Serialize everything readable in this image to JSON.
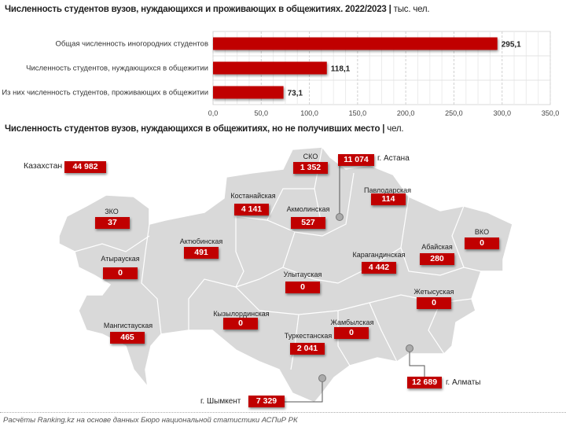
{
  "chart_data": [
    {
      "type": "bar",
      "orientation": "horizontal",
      "title": "Численность студентов вузов, нуждающихся и проживающих в общежитиях. 2022/2023",
      "unit": "тыс. чел.",
      "categories": [
        "Общая численность иногородних студентов",
        "Численность студентов, нуждающихся в общежитии",
        "Из них численность студентов, проживающих в общежитии"
      ],
      "values": [
        295.1,
        118.1,
        73.1
      ],
      "value_labels": [
        "295,1",
        "118,1",
        "73,1"
      ],
      "xlim": [
        0,
        350
      ],
      "ticks": [
        "0,0",
        "50,0",
        "100,0",
        "150,0",
        "200,0",
        "250,0",
        "300,0",
        "350,0"
      ],
      "grid": true,
      "color": "#c00000"
    },
    {
      "type": "map",
      "title": "Численность студентов вузов, нуждающихся в общежитиях, но не получивших место",
      "unit": "чел.",
      "total": {
        "label": "Казахстан",
        "value": "44 982"
      },
      "regions": [
        {
          "name": "СКО",
          "value": "1 352"
        },
        {
          "name": "Костанайская",
          "value": "4 141"
        },
        {
          "name": "Акмолинская",
          "value": "527"
        },
        {
          "name": "Павлодарская",
          "value": "114"
        },
        {
          "name": "ЗКО",
          "value": "37"
        },
        {
          "name": "Актюбинская",
          "value": "491"
        },
        {
          "name": "Атырауская",
          "value": "0"
        },
        {
          "name": "Улытауская",
          "value": "0"
        },
        {
          "name": "Карагандинская",
          "value": "4 442"
        },
        {
          "name": "Абайская",
          "value": "280"
        },
        {
          "name": "ВКО",
          "value": "0"
        },
        {
          "name": "Жетысуская",
          "value": "0"
        },
        {
          "name": "Кызылординская",
          "value": "0"
        },
        {
          "name": "Мангистауская",
          "value": "465"
        },
        {
          "name": "Туркестанская",
          "value": "2 041"
        },
        {
          "name": "Жамбылская",
          "value": "0"
        }
      ],
      "cities": [
        {
          "name": "г. Астана",
          "value": "11 074"
        },
        {
          "name": "г. Алматы",
          "value": "12 689"
        },
        {
          "name": "г. Шымкент",
          "value": "7 329"
        }
      ],
      "map_color": "#d9d9d9",
      "box_color": "#c00000"
    }
  ],
  "footer": "Расчёты Ranking.kz на основе данных Бюро национальной статистики АСПиР РК"
}
